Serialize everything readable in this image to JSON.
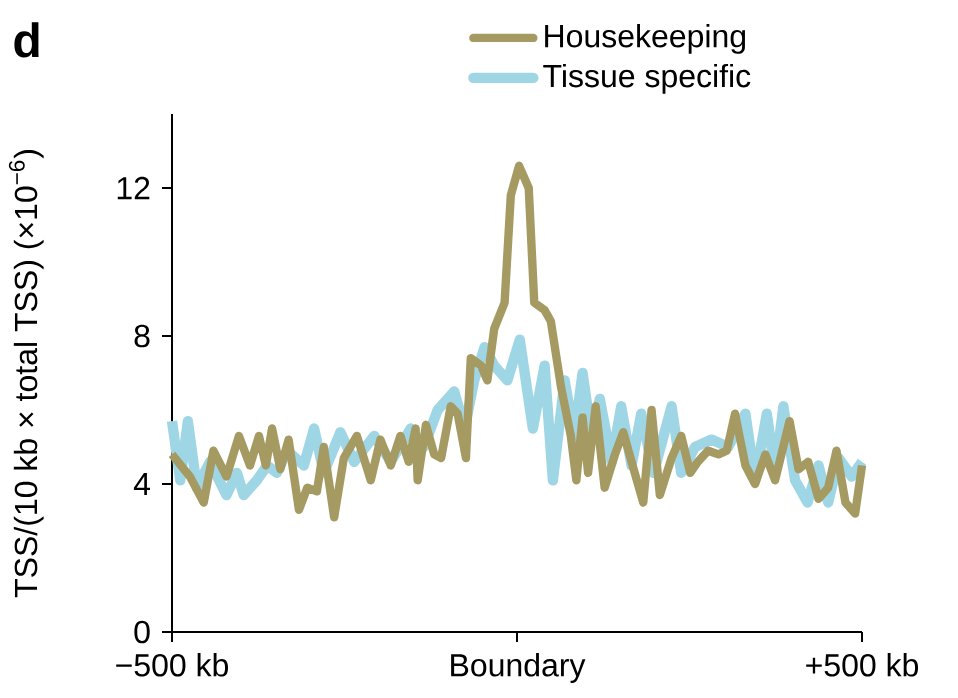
{
  "chart_data": {
    "type": "line",
    "title": "d",
    "ylabel": "TSS/(10 kb × total TSS) (×10$^{−6}$)",
    "xlim": [
      -500,
      500
    ],
    "ylim": [
      0,
      14
    ],
    "xticks": [
      {
        "value": -500,
        "label": "−500 kb"
      },
      {
        "value": 0,
        "label": "Boundary"
      },
      {
        "value": 500,
        "label": "+500 kb"
      }
    ],
    "yticks": [
      0,
      4,
      8,
      12
    ],
    "legend": "top right",
    "line_style": "solid",
    "series": [
      {
        "name": "Housekeeping",
        "color": "#a59a62",
        "x": [
          -500,
          -474,
          -454,
          -440,
          -421,
          -403,
          -387,
          -374,
          -364,
          -355,
          -343,
          -331,
          -316,
          -304,
          -290,
          -280,
          -265,
          -251,
          -232,
          -212,
          -198,
          -183,
          -169,
          -157,
          -147,
          -144,
          -132,
          -120,
          -110,
          -96,
          -86,
          -74,
          -67,
          -52,
          -43,
          -33,
          -18,
          -9,
          3,
          17,
          25,
          40,
          49,
          64,
          78,
          86,
          95,
          103,
          114,
          127,
          142,
          154,
          169,
          183,
          195,
          207,
          224,
          238,
          251,
          262,
          277,
          292,
          304,
          316,
          331,
          345,
          360,
          374,
          395,
          408,
          422,
          437,
          451,
          463,
          476,
          490,
          500
        ],
        "values": [
          4.8,
          4.2,
          3.5,
          4.9,
          4.2,
          5.3,
          4.5,
          5.3,
          4.5,
          5.5,
          4.4,
          5.2,
          3.3,
          3.9,
          3.8,
          5.0,
          3.1,
          4.7,
          5.3,
          4.1,
          5.2,
          4.5,
          5.3,
          4.6,
          5.5,
          4.1,
          5.6,
          4.8,
          4.7,
          6.1,
          5.9,
          4.7,
          7.4,
          7.2,
          6.8,
          8.2,
          8.9,
          11.8,
          12.6,
          12.0,
          8.9,
          8.7,
          8.4,
          6.6,
          5.3,
          4.1,
          5.8,
          4.3,
          6.1,
          3.9,
          4.8,
          5.4,
          4.4,
          3.5,
          6.0,
          3.7,
          4.7,
          5.3,
          4.3,
          4.6,
          4.9,
          4.8,
          4.9,
          5.9,
          4.5,
          4.0,
          4.8,
          4.1,
          5.7,
          4.4,
          4.6,
          3.6,
          3.9,
          4.9,
          3.5,
          3.2,
          4.5
        ]
      },
      {
        "name": "Tissue specific",
        "color": "#9fd6e5",
        "x": [
          -500,
          -488,
          -477,
          -464,
          -445,
          -421,
          -406,
          -396,
          -377,
          -362,
          -348,
          -333,
          -309,
          -294,
          -280,
          -256,
          -236,
          -207,
          -183,
          -154,
          -135,
          -115,
          -91,
          -76,
          -62,
          -47,
          -33,
          -14,
          4,
          23,
          40,
          52,
          69,
          83,
          95,
          108,
          120,
          137,
          151,
          166,
          180,
          198,
          224,
          238,
          258,
          282,
          306,
          331,
          345,
          362,
          374,
          386,
          403,
          421,
          437,
          451,
          466,
          485,
          500
        ],
        "values": [
          5.7,
          4.1,
          5.7,
          3.9,
          4.6,
          3.7,
          4.3,
          3.7,
          4.1,
          4.5,
          4.3,
          4.9,
          4.5,
          5.5,
          4.3,
          5.4,
          4.6,
          5.3,
          4.6,
          5.5,
          5.0,
          6.0,
          6.5,
          5.5,
          6.8,
          7.7,
          7.2,
          6.8,
          7.9,
          5.5,
          7.2,
          4.1,
          6.8,
          5.3,
          7.0,
          5.3,
          6.3,
          4.6,
          6.1,
          4.5,
          5.9,
          4.3,
          6.1,
          4.3,
          5.0,
          5.2,
          5.0,
          5.9,
          4.1,
          5.9,
          4.3,
          6.1,
          4.1,
          3.5,
          4.5,
          3.5,
          4.7,
          4.2,
          4.6
        ]
      }
    ]
  }
}
